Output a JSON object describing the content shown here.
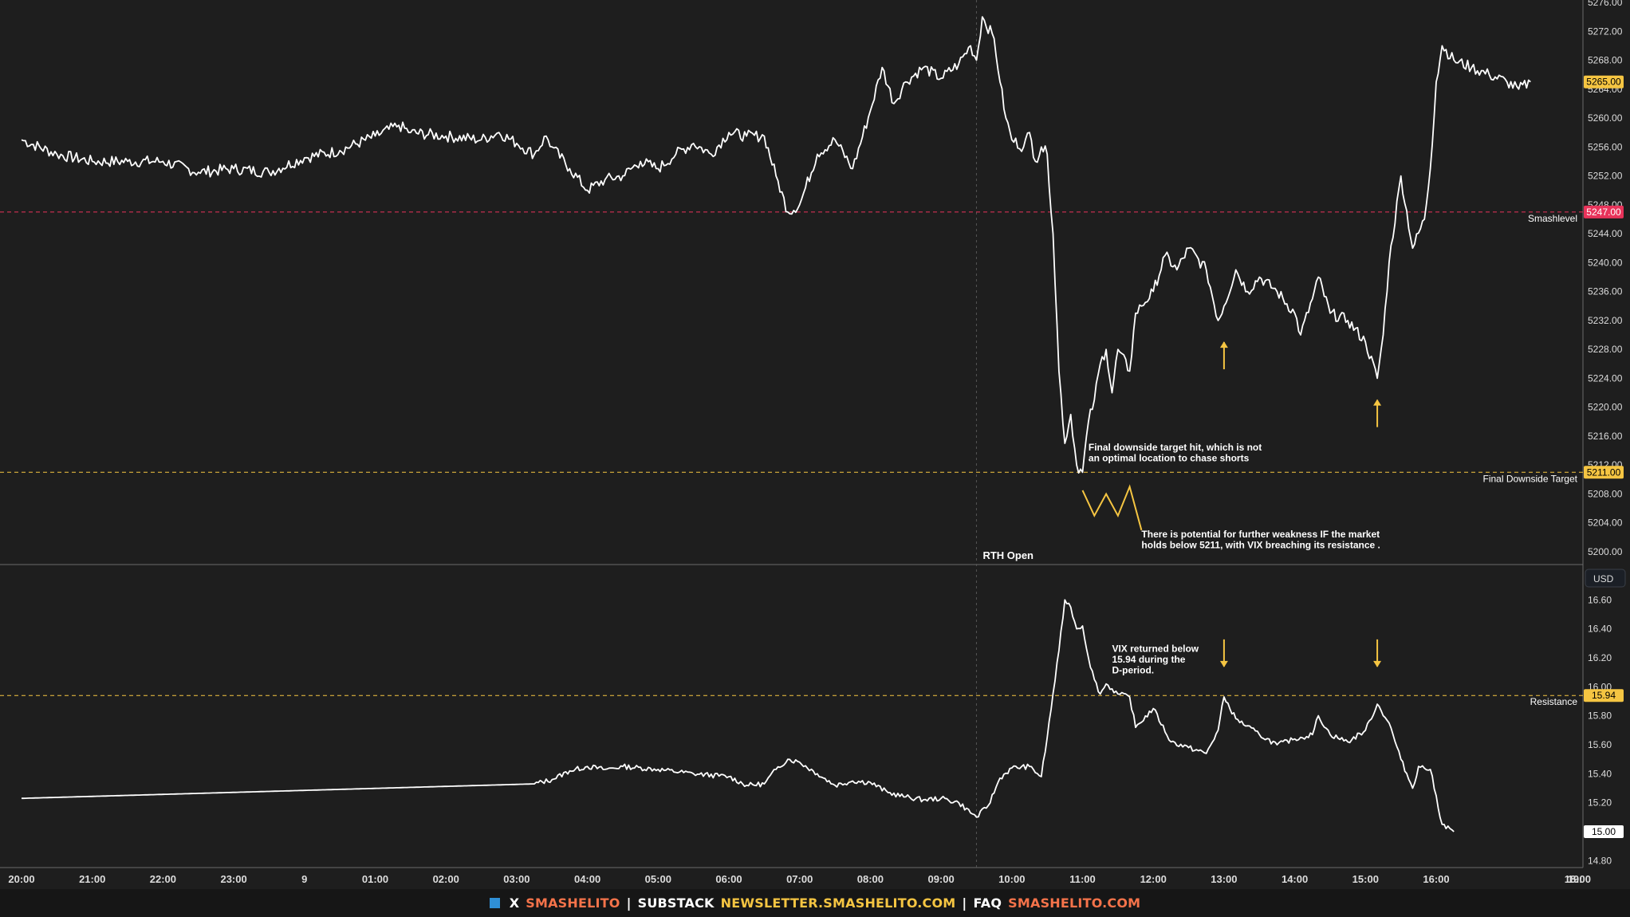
{
  "colors": {
    "background": "#1e1e1e",
    "line": "#ffffff",
    "yellow": "#f5c542",
    "red": "#e8335a",
    "grid": "#2a2a2a",
    "footer_bg": "#161616",
    "footer_accent": "#f5734a",
    "footer_square": "#2f8fd6"
  },
  "chart_data": [
    {
      "type": "line",
      "panel": "top",
      "series": [
        {
          "points": [
            [
              "20:00",
              5257
            ],
            [
              "20:30",
              5255
            ],
            [
              "21:00",
              5254
            ],
            [
              "21:30",
              5254
            ],
            [
              "22:00",
              5254
            ],
            [
              "22:30",
              5252.5
            ],
            [
              "23:00",
              5253
            ],
            [
              "23:30",
              5252.5
            ],
            [
              "9",
              5254.5
            ],
            [
              "00:30",
              5255.5
            ],
            [
              "01:00",
              5257.5
            ],
            [
              "01:20",
              5259
            ],
            [
              "01:30",
              5258
            ],
            [
              "02:00",
              5257.5
            ],
            [
              "02:30",
              5257
            ],
            [
              "02:45",
              5258
            ],
            [
              "03:00",
              5256.5
            ],
            [
              "03:15",
              5255
            ],
            [
              "03:25",
              5257.5
            ],
            [
              "03:30",
              5256
            ],
            [
              "03:45",
              5253
            ],
            [
              "04:00",
              5250
            ],
            [
              "04:15",
              5251.5
            ],
            [
              "04:30",
              5252
            ],
            [
              "04:45",
              5254
            ],
            [
              "05:00",
              5253
            ],
            [
              "05:15",
              5255
            ],
            [
              "05:30",
              5256.5
            ],
            [
              "05:45",
              5255
            ],
            [
              "06:00",
              5258
            ],
            [
              "06:15",
              5257.5
            ],
            [
              "06:30",
              5257.5
            ],
            [
              "06:40",
              5252
            ],
            [
              "06:50",
              5247
            ],
            [
              "07:00",
              5248
            ],
            [
              "07:15",
              5255
            ],
            [
              "07:30",
              5257
            ],
            [
              "07:45",
              5253
            ],
            [
              "08:00",
              5261
            ],
            [
              "08:10",
              5267
            ],
            [
              "08:20",
              5262
            ],
            [
              "08:30",
              5265
            ],
            [
              "08:45",
              5267
            ],
            [
              "09:00",
              5265.5
            ],
            [
              "09:15",
              5267.5
            ],
            [
              "09:25",
              5270
            ],
            [
              "09:30",
              5268
            ],
            [
              "09:35",
              5274
            ],
            [
              "09:45",
              5271
            ],
            [
              "09:50",
              5265
            ],
            [
              "09:55",
              5260
            ],
            [
              "10:00",
              5257
            ],
            [
              "10:10",
              5256
            ],
            [
              "10:15",
              5258
            ],
            [
              "10:20",
              5254
            ],
            [
              "10:25",
              5256
            ],
            [
              "10:30",
              5255
            ],
            [
              "10:35",
              5244
            ],
            [
              "10:40",
              5225
            ],
            [
              "10:45",
              5215
            ],
            [
              "10:50",
              5219
            ],
            [
              "10:55",
              5212
            ],
            [
              "11:00",
              5211
            ],
            [
              "11:05",
              5218
            ],
            [
              "11:10",
              5221
            ],
            [
              "11:15",
              5226
            ],
            [
              "11:20",
              5228
            ],
            [
              "11:25",
              5222
            ],
            [
              "11:30",
              5228
            ],
            [
              "11:40",
              5225
            ],
            [
              "11:45",
              5233
            ],
            [
              "11:50",
              5234
            ],
            [
              "12:00",
              5236
            ],
            [
              "12:10",
              5241
            ],
            [
              "12:20",
              5239
            ],
            [
              "12:30",
              5242
            ],
            [
              "12:45",
              5239
            ],
            [
              "12:55",
              5232
            ],
            [
              "13:00",
              5234
            ],
            [
              "13:10",
              5239
            ],
            [
              "13:20",
              5236
            ],
            [
              "13:30",
              5238
            ],
            [
              "13:45",
              5236
            ],
            [
              "14:00",
              5233
            ],
            [
              "14:05",
              5230
            ],
            [
              "14:15",
              5235
            ],
            [
              "14:20",
              5238
            ],
            [
              "14:30",
              5233
            ],
            [
              "14:45",
              5232
            ],
            [
              "15:00",
              5229
            ],
            [
              "15:10",
              5224
            ],
            [
              "15:15",
              5230
            ],
            [
              "15:20",
              5240
            ],
            [
              "15:30",
              5252
            ],
            [
              "15:40",
              5242
            ],
            [
              "15:50",
              5246
            ],
            [
              "15:55",
              5253
            ],
            [
              "16:00",
              5265
            ],
            [
              "16:05",
              5270
            ],
            [
              "16:15",
              5268
            ],
            [
              "16:30",
              5267
            ],
            [
              "16:45",
              5266
            ],
            [
              "17:00",
              5265
            ],
            [
              "17:10",
              5264
            ],
            [
              "17:20",
              5265
            ]
          ]
        }
      ],
      "ylim": [
        5200,
        5276
      ],
      "ticks": [
        "5276.00",
        "5272.00",
        "5268.00",
        "5264.00",
        "5260.00",
        "5256.00",
        "5252.00",
        "5248.00",
        "5244.00",
        "5240.00",
        "5236.00",
        "5232.00",
        "5228.00",
        "5224.00",
        "5220.00",
        "5216.00",
        "5212.00",
        "5208.00",
        "5204.00",
        "5200.00"
      ],
      "levels": [
        {
          "value": 5247,
          "label": "5247.00",
          "name": "Smashlevel",
          "color": "#e8335a"
        },
        {
          "value": 5211,
          "label": "5211.00",
          "name": "Final Downside Target",
          "color": "#f5c542"
        }
      ],
      "last_price": {
        "value": 5265,
        "label": "5265.00"
      },
      "annotations": [
        {
          "text": [
            "Final downside target hit, which is not",
            "an optimal location to chase shorts"
          ],
          "at": [
            "11:05",
            5214
          ]
        },
        {
          "text": [
            "There is potential for further weakness IF the market",
            "holds below 5211, with VIX breaching its resistance ."
          ],
          "at": [
            "11:50",
            5202
          ]
        }
      ],
      "arrows_up": [
        [
          "13:00",
          5229
        ],
        [
          "15:10",
          5221
        ]
      ],
      "zigzag": [
        [
          "11:00",
          5208.5
        ],
        [
          "11:10",
          5205
        ],
        [
          "11:20",
          5208
        ],
        [
          "11:30",
          5205
        ],
        [
          "11:40",
          5209
        ],
        [
          "11:50",
          5203
        ]
      ]
    },
    {
      "type": "line",
      "panel": "bottom",
      "series": [
        {
          "points": [
            [
              "20:00",
              15.23
            ],
            [
              "03:15",
              15.33
            ],
            [
              "03:30",
              15.36
            ],
            [
              "03:45",
              15.42
            ],
            [
              "04:00",
              15.45
            ],
            [
              "04:15",
              15.43
            ],
            [
              "04:30",
              15.45
            ],
            [
              "05:00",
              15.43
            ],
            [
              "05:30",
              15.4
            ],
            [
              "06:00",
              15.38
            ],
            [
              "06:15",
              15.32
            ],
            [
              "06:30",
              15.33
            ],
            [
              "06:40",
              15.43
            ],
            [
              "06:50",
              15.5
            ],
            [
              "07:00",
              15.48
            ],
            [
              "07:15",
              15.4
            ],
            [
              "07:30",
              15.32
            ],
            [
              "07:45",
              15.35
            ],
            [
              "08:00",
              15.34
            ],
            [
              "08:15",
              15.27
            ],
            [
              "08:30",
              15.24
            ],
            [
              "08:45",
              15.22
            ],
            [
              "09:00",
              15.23
            ],
            [
              "09:15",
              15.2
            ],
            [
              "09:30",
              15.1
            ],
            [
              "09:40",
              15.18
            ],
            [
              "09:50",
              15.37
            ],
            [
              "10:00",
              15.44
            ],
            [
              "10:15",
              15.45
            ],
            [
              "10:25",
              15.38
            ],
            [
              "10:30",
              15.65
            ],
            [
              "10:40",
              16.25
            ],
            [
              "10:45",
              16.6
            ],
            [
              "10:50",
              16.55
            ],
            [
              "10:55",
              16.4
            ],
            [
              "11:00",
              16.42
            ],
            [
              "11:05",
              16.2
            ],
            [
              "11:10",
              16.05
            ],
            [
              "11:15",
              15.95
            ],
            [
              "11:20",
              16.02
            ],
            [
              "11:30",
              15.95
            ],
            [
              "11:40",
              15.93
            ],
            [
              "11:45",
              15.72
            ],
            [
              "12:00",
              15.85
            ],
            [
              "12:15",
              15.62
            ],
            [
              "12:30",
              15.58
            ],
            [
              "12:45",
              15.54
            ],
            [
              "12:55",
              15.7
            ],
            [
              "13:00",
              15.93
            ],
            [
              "13:10",
              15.78
            ],
            [
              "13:30",
              15.67
            ],
            [
              "13:45",
              15.6
            ],
            [
              "14:00",
              15.64
            ],
            [
              "14:15",
              15.67
            ],
            [
              "14:20",
              15.8
            ],
            [
              "14:30",
              15.67
            ],
            [
              "14:45",
              15.62
            ],
            [
              "15:00",
              15.7
            ],
            [
              "15:10",
              15.88
            ],
            [
              "15:20",
              15.75
            ],
            [
              "15:30",
              15.5
            ],
            [
              "15:40",
              15.3
            ],
            [
              "15:45",
              15.45
            ],
            [
              "15:55",
              15.43
            ],
            [
              "16:05",
              15.05
            ],
            [
              "16:15",
              15.0
            ]
          ]
        }
      ],
      "ylim": [
        14.78,
        16.64
      ],
      "ticks": [
        "16.60",
        "16.40",
        "16.20",
        "16.00",
        "15.80",
        "15.60",
        "15.40",
        "15.20",
        "15.00",
        "14.80"
      ],
      "levels": [
        {
          "value": 15.94,
          "label": "15.94",
          "name": "Resistance",
          "color": "#f5c542"
        }
      ],
      "last_price": {
        "value": 15.0,
        "label": "15.00"
      },
      "annotations": [
        {
          "text": [
            "VIX returned below",
            "15.94 during the",
            "D-period."
          ],
          "at": [
            "11:25",
            16.24
          ]
        }
      ],
      "arrows_down": [
        [
          "13:00",
          16.14
        ],
        [
          "15:10",
          16.14
        ]
      ]
    }
  ],
  "x_axis": {
    "ticks": [
      "20:00",
      "21:00",
      "22:00",
      "23:00",
      "9",
      "01:00",
      "02:00",
      "03:00",
      "04:00",
      "05:00",
      "06:00",
      "07:00",
      "08:00",
      "09:00",
      "10:00",
      "11:00",
      "12:00",
      "13:00",
      "14:00",
      "15:00",
      "16:00",
      "18:00",
      "19:"
    ],
    "vertical_marker": {
      "at": "09:30",
      "label": "RTH Open"
    }
  },
  "currency_badge": "USD",
  "footer": {
    "x_label": "X",
    "x_handle": "SMASHELITO",
    "sep": "|",
    "substack_label": "SUBSTACK",
    "substack_url": "NEWSLETTER.SMASHELITO.COM",
    "faq_label": "FAQ",
    "faq_url": "SMASHELITO.COM"
  }
}
